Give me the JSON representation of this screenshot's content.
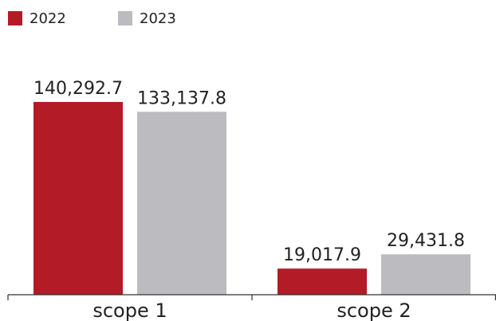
{
  "chart_data": {
    "type": "bar",
    "categories": [
      "scope 1",
      "scope 2"
    ],
    "series": [
      {
        "name": "2022",
        "color": "#b31b27",
        "values": [
          140292.7,
          19017.9
        ],
        "value_labels": [
          "140,292.7",
          "19,017.9"
        ]
      },
      {
        "name": "2023",
        "color": "#bcbcc0",
        "values": [
          133137.8,
          29431.8
        ],
        "value_labels": [
          "133,137.8",
          "29,431.8"
        ]
      }
    ],
    "legend": "top-left"
  }
}
